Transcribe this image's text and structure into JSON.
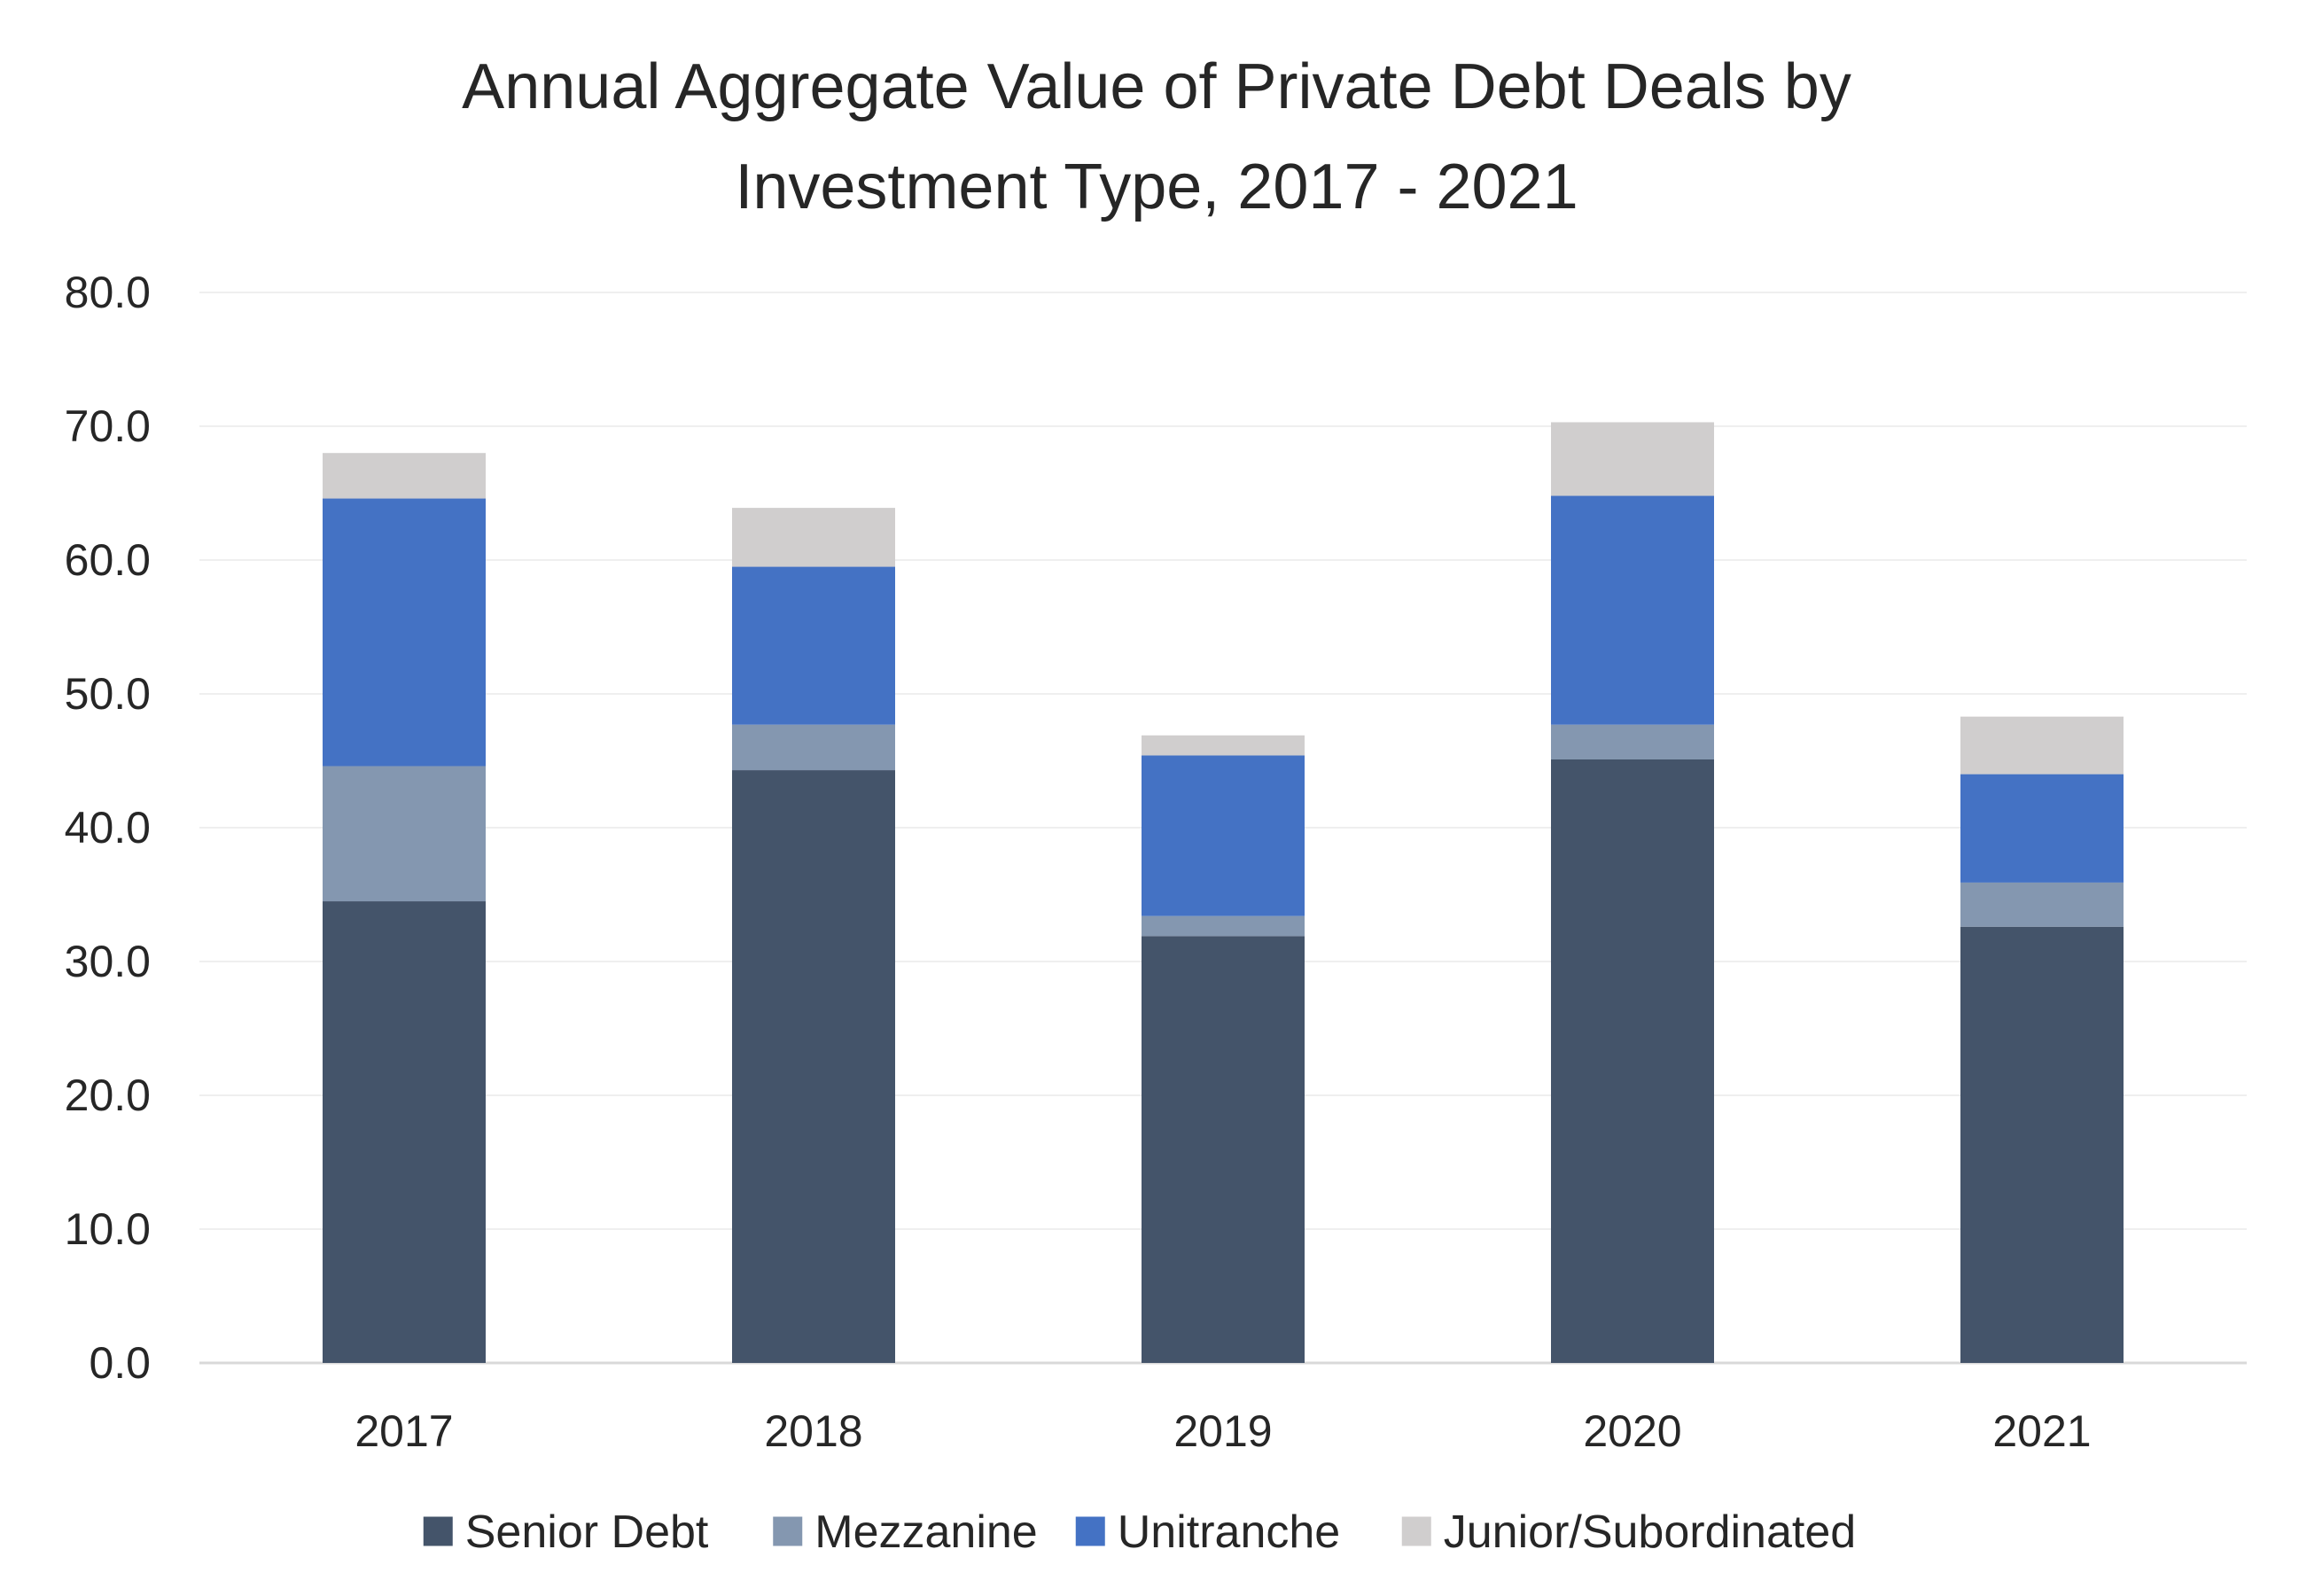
{
  "chart_data": {
    "type": "bar",
    "stacked": true,
    "title": "Annual Aggregate Value of Private Debt Deals by Investment Type, 2017 - 2021",
    "title_lines": [
      "Annual Aggregate Value of Private Debt Deals by",
      "Investment Type, 2017 - 2021"
    ],
    "xlabel": "",
    "ylabel": "",
    "ylim": [
      0,
      80
    ],
    "y_tick_step": 10,
    "y_tick_labels": [
      "0.0",
      "10.0",
      "20.0",
      "30.0",
      "40.0",
      "50.0",
      "60.0",
      "70.0",
      "80.0"
    ],
    "categories": [
      "2017",
      "2018",
      "2019",
      "2020",
      "2021"
    ],
    "series": [
      {
        "name": "Senior Debt",
        "color": "#44546a",
        "values": [
          34.5,
          44.3,
          31.9,
          45.1,
          32.6
        ]
      },
      {
        "name": "Mezzanine",
        "color": "#8497b0",
        "values": [
          10.1,
          3.4,
          1.5,
          2.6,
          3.3
        ]
      },
      {
        "name": "Unitranche",
        "color": "#4472c4",
        "values": [
          20.0,
          11.8,
          12.0,
          17.1,
          8.1
        ]
      },
      {
        "name": "Junior/Subordinated",
        "color": "#d0cece",
        "values": [
          3.4,
          4.4,
          1.5,
          5.5,
          4.3
        ]
      }
    ],
    "grid": true,
    "gridline_color": "#efefef",
    "axis_line_color": "#d9d9d9",
    "legend_position": "bottom"
  }
}
